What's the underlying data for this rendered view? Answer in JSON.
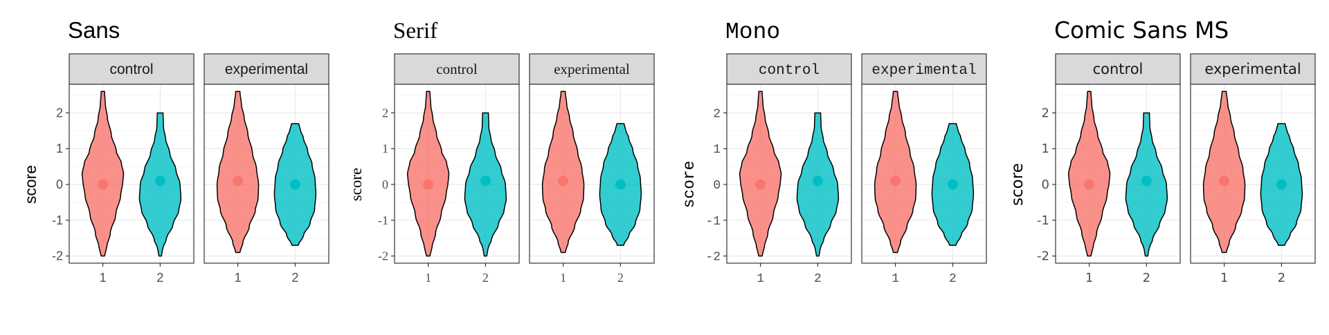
{
  "colors": {
    "control": "#F8766D",
    "experimental": "#00BFC4",
    "panel_border": "#333333",
    "strip_fill": "#D9D9D9",
    "grid_major": "#EBEBEB",
    "grid_minor": "#F5F5F5"
  },
  "chart_data": [
    {
      "type": "violin",
      "title": "Sans",
      "font": "sans",
      "ylabel": "score",
      "xlabel": "",
      "ylim": [
        -2.2,
        2.8
      ],
      "y_ticks": [
        "2",
        "1",
        "0",
        "-1",
        "-2"
      ],
      "y_tick_values": [
        2,
        1,
        0,
        -1,
        -2
      ],
      "x_categories": [
        "1",
        "2"
      ],
      "grid": true,
      "legend": "none",
      "facets": [
        {
          "name": "control",
          "violins": [
            {
              "x": "1",
              "min": -2.0,
              "max": 2.6,
              "mean": 0.0
            },
            {
              "x": "2",
              "min": -2.0,
              "max": 2.0,
              "mean": 0.1
            }
          ]
        },
        {
          "name": "experimental",
          "violins": [
            {
              "x": "1",
              "min": -1.9,
              "max": 2.6,
              "mean": 0.1
            },
            {
              "x": "2",
              "min": -1.7,
              "max": 1.7,
              "mean": 0.0
            }
          ]
        }
      ]
    },
    {
      "type": "violin",
      "title": "Serif",
      "font": "serif",
      "ylabel": "score",
      "xlabel": "",
      "ylim": [
        -2.2,
        2.8
      ],
      "y_ticks": [
        "2",
        "1",
        "0",
        "-1",
        "-2"
      ],
      "y_tick_values": [
        2,
        1,
        0,
        -1,
        -2
      ],
      "x_categories": [
        "1",
        "2"
      ],
      "grid": true,
      "legend": "none",
      "facets": [
        {
          "name": "control",
          "violins": [
            {
              "x": "1",
              "min": -2.0,
              "max": 2.6,
              "mean": 0.0
            },
            {
              "x": "2",
              "min": -2.0,
              "max": 2.0,
              "mean": 0.1
            }
          ]
        },
        {
          "name": "experimental",
          "violins": [
            {
              "x": "1",
              "min": -1.9,
              "max": 2.6,
              "mean": 0.1
            },
            {
              "x": "2",
              "min": -1.7,
              "max": 1.7,
              "mean": 0.0
            }
          ]
        }
      ]
    },
    {
      "type": "violin",
      "title": "Mono",
      "font": "mono",
      "ylabel": "score",
      "xlabel": "",
      "ylim": [
        -2.2,
        2.8
      ],
      "y_ticks": [
        "2",
        "1",
        "0",
        "-1",
        "-2"
      ],
      "y_tick_values": [
        2,
        1,
        0,
        -1,
        -2
      ],
      "x_categories": [
        "1",
        "2"
      ],
      "grid": true,
      "legend": "none",
      "facets": [
        {
          "name": "control",
          "violins": [
            {
              "x": "1",
              "min": -2.0,
              "max": 2.6,
              "mean": 0.0
            },
            {
              "x": "2",
              "min": -2.0,
              "max": 2.0,
              "mean": 0.1
            }
          ]
        },
        {
          "name": "experimental",
          "violins": [
            {
              "x": "1",
              "min": -1.9,
              "max": 2.6,
              "mean": 0.1
            },
            {
              "x": "2",
              "min": -1.7,
              "max": 1.7,
              "mean": 0.0
            }
          ]
        }
      ]
    },
    {
      "type": "violin",
      "title": "Comic Sans MS",
      "font": "comic",
      "ylabel": "score",
      "xlabel": "",
      "ylim": [
        -2.2,
        2.8
      ],
      "y_ticks": [
        "2",
        "1",
        "0",
        "-1",
        "-2"
      ],
      "y_tick_values": [
        2,
        1,
        0,
        -1,
        -2
      ],
      "x_categories": [
        "1",
        "2"
      ],
      "grid": true,
      "legend": "none",
      "facets": [
        {
          "name": "control",
          "violins": [
            {
              "x": "1",
              "min": -2.0,
              "max": 2.6,
              "mean": 0.0
            },
            {
              "x": "2",
              "min": -2.0,
              "max": 2.0,
              "mean": 0.1
            }
          ]
        },
        {
          "name": "experimental",
          "violins": [
            {
              "x": "1",
              "min": -1.9,
              "max": 2.6,
              "mean": 0.1
            },
            {
              "x": "2",
              "min": -1.7,
              "max": 1.7,
              "mean": 0.0
            }
          ]
        }
      ]
    }
  ]
}
